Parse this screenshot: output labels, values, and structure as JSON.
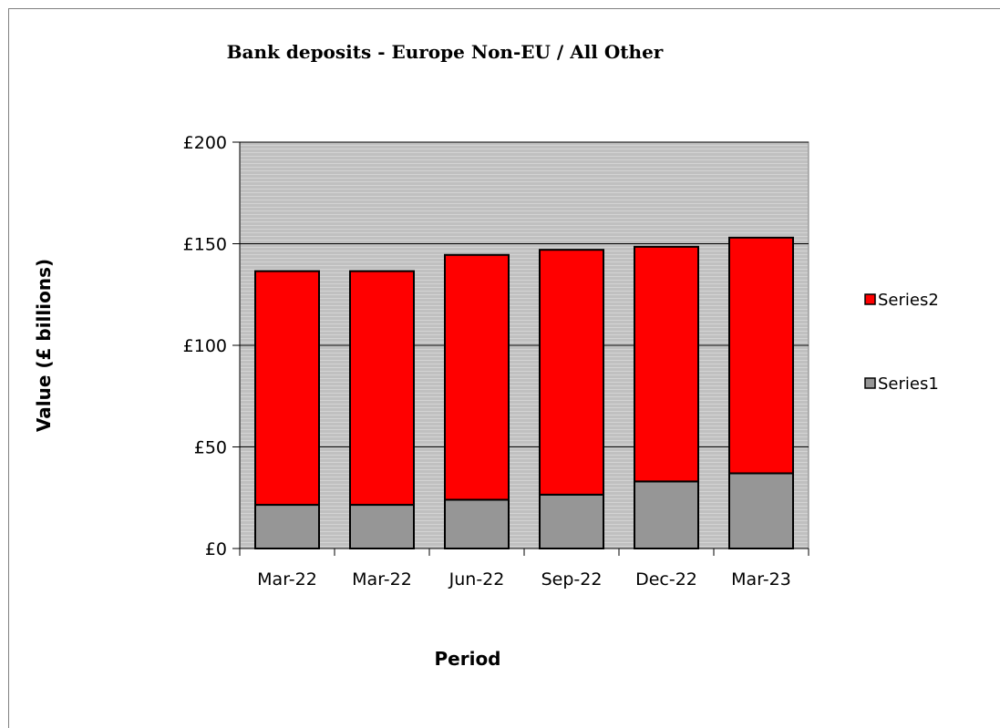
{
  "chart_data": {
    "type": "bar",
    "stacked": true,
    "title": "Bank deposits - Europe Non-EU / All Other",
    "xlabel": "Period",
    "ylabel": "Value (£ billions)",
    "categories": [
      "Mar-22",
      "Mar-22",
      "Jun-22",
      "Sep-22",
      "Dec-22",
      "Mar-23"
    ],
    "series": [
      {
        "name": "Series1",
        "color": "#969696",
        "values": [
          21.5,
          21.5,
          24,
          26.5,
          33,
          37
        ]
      },
      {
        "name": "Series2",
        "color": "#ff0000",
        "values": [
          115,
          115,
          120.5,
          120.5,
          115.5,
          116
        ]
      }
    ],
    "ylim": [
      0,
      200
    ],
    "yticks": [
      0,
      50,
      100,
      150,
      200
    ],
    "ytick_labels": [
      "£0",
      "£50",
      "£100",
      "£150",
      "£200"
    ],
    "grid": true,
    "plot_background": "#c0c0c0",
    "legend_position": "right",
    "legend_order": [
      "Series2",
      "Series1"
    ]
  }
}
